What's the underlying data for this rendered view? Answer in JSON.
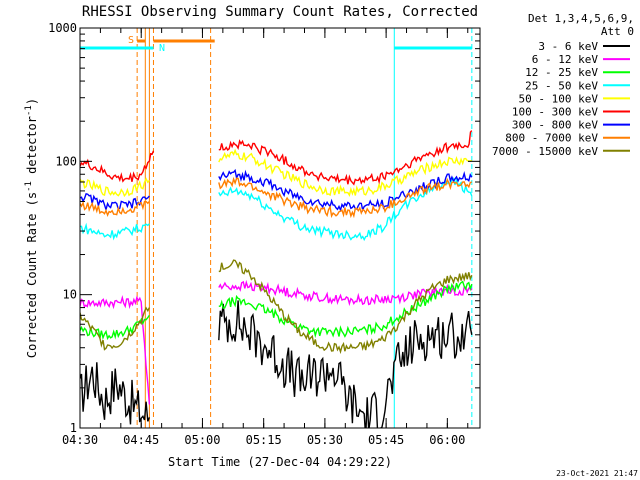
{
  "chart_data": {
    "type": "line",
    "title": "RHESSI Observing Summary Count Rates, Corrected",
    "xlabel": "Start Time (27-Dec-04 04:29:22)",
    "ylabel_main": "Corrected Count Rate (s",
    "ylabel_sup1": "-1",
    "ylabel_mid": " detector",
    "ylabel_sup2": "-1",
    "ylabel_end": ")",
    "footer": "23-Oct-2021 21:47",
    "legend_header": [
      "Det 1,3,4,5,6,9,",
      "Att 0"
    ],
    "legend_placement": "right",
    "y_scale": "log",
    "ylim": [
      1,
      1000
    ],
    "xlim": [
      "04:30",
      "06:08"
    ],
    "x_ticks": [
      "04:30",
      "04:45",
      "05:00",
      "05:15",
      "05:30",
      "05:45",
      "06:00"
    ],
    "y_ticks": [
      "1",
      "10",
      "100",
      "1000"
    ],
    "flags": {
      "saa_label": "S",
      "night_label": "N",
      "saa_color": "#ff7f00",
      "night_color": "#00ffff",
      "saa_bars": [
        [
          "04:44",
          "04:46"
        ],
        [
          "04:48",
          "05:03"
        ]
      ],
      "night_bars": [
        [
          "04:30",
          "04:48"
        ],
        [
          "05:47",
          "06:06"
        ]
      ]
    },
    "vlines": {
      "cyan_solid": [
        "04:30",
        "05:47"
      ],
      "cyan_dashed": [
        "06:06"
      ],
      "orange_solid": [
        "04:46",
        "04:47"
      ],
      "orange_dashed": [
        "04:44",
        "04:48",
        "05:02"
      ]
    },
    "series": [
      {
        "name": "3 - 6 keV",
        "color": "#000000",
        "segments": [
          {
            "x": [
              "04:30",
              "04:33",
              "04:36",
              "04:39",
              "04:42",
              "04:45",
              "04:47"
            ],
            "y": [
              1.7,
              2.6,
              1.6,
              2.2,
              1.6,
              1.3,
              1.2
            ]
          },
          {
            "x": [
              "05:04",
              "05:08",
              "05:12",
              "05:16",
              "05:20",
              "05:24",
              "05:28",
              "05:32",
              "05:36",
              "05:40",
              "05:44",
              "05:48",
              "05:52",
              "05:56",
              "06:00",
              "06:04",
              "06:06"
            ],
            "y": [
              6,
              6.5,
              5,
              4,
              3,
              2.2,
              2.5,
              2.8,
              1.6,
              1.2,
              1.4,
              3,
              4.5,
              5,
              5,
              5,
              5
            ]
          }
        ]
      },
      {
        "name": "6 - 12 keV",
        "color": "#ff00ff",
        "segments": [
          {
            "x": [
              "04:30",
              "04:35",
              "04:40",
              "04:45",
              "04:47"
            ],
            "y": [
              8.7,
              8.7,
              8.8,
              8.9,
              1.5
            ]
          },
          {
            "x": [
              "05:04",
              "05:10",
              "05:16",
              "05:20",
              "05:24",
              "05:28",
              "05:32",
              "05:36",
              "05:40",
              "05:44",
              "05:48",
              "05:52",
              "05:56",
              "06:00",
              "06:06"
            ],
            "y": [
              11.5,
              11.6,
              11.2,
              10.6,
              10.1,
              9.6,
              9.3,
              9.1,
              9.1,
              9.2,
              9.5,
              10.0,
              10.4,
              10.7,
              10.8
            ]
          }
        ]
      },
      {
        "name": "12 - 25 keV",
        "color": "#00ff00",
        "segments": [
          {
            "x": [
              "04:30",
              "04:33",
              "04:36",
              "04:39",
              "04:42",
              "04:45",
              "04:47"
            ],
            "y": [
              5.5,
              5.2,
              5.0,
              5.1,
              5.4,
              6.2,
              7.0
            ]
          },
          {
            "x": [
              "05:04",
              "05:08",
              "05:12",
              "05:16",
              "05:20",
              "05:24",
              "05:28",
              "05:32",
              "05:36",
              "05:40",
              "05:44",
              "05:48",
              "05:52",
              "05:56",
              "06:00",
              "06:06"
            ],
            "y": [
              8,
              9,
              8.5,
              7.5,
              6.5,
              5.7,
              5.3,
              5.2,
              5.3,
              5.4,
              5.8,
              6.8,
              8,
              9.5,
              11,
              12
            ]
          }
        ]
      },
      {
        "name": "25 - 50 keV",
        "color": "#00ffff",
        "segments": [
          {
            "x": [
              "04:30",
              "04:33",
              "04:36",
              "04:39",
              "04:42",
              "04:45",
              "04:47"
            ],
            "y": [
              32,
              30,
              28,
              29,
              30,
              32,
              34
            ]
          },
          {
            "x": [
              "05:04",
              "05:08",
              "05:12",
              "05:16",
              "05:20",
              "05:24",
              "05:28",
              "05:32",
              "05:36",
              "05:40",
              "05:44",
              "05:48",
              "05:52",
              "05:56",
              "06:00",
              "06:03",
              "06:06"
            ],
            "y": [
              55,
              60,
              55,
              45,
              38,
              33,
              30,
              29,
              28,
              28,
              32,
              42,
              52,
              62,
              72,
              68,
              55
            ]
          }
        ]
      },
      {
        "name": "50 - 100 keV",
        "color": "#ffff00",
        "segments": [
          {
            "x": [
              "04:30",
              "04:33",
              "04:36",
              "04:39",
              "04:42",
              "04:45",
              "04:47"
            ],
            "y": [
              70,
              65,
              60,
              58,
              60,
              66,
              72
            ]
          },
          {
            "x": [
              "05:04",
              "05:08",
              "05:12",
              "05:16",
              "05:20",
              "05:24",
              "05:28",
              "05:32",
              "05:36",
              "05:40",
              "05:44",
              "05:48",
              "05:52",
              "05:56",
              "06:00",
              "06:06"
            ],
            "y": [
              105,
              112,
              106,
              92,
              80,
              70,
              63,
              60,
              59,
              60,
              64,
              72,
              82,
              92,
              100,
              102
            ]
          }
        ]
      },
      {
        "name": "100 - 300 keV",
        "color": "#ff0000",
        "segments": [
          {
            "x": [
              "04:30",
              "04:33",
              "04:36",
              "04:39",
              "04:42",
              "04:45",
              "04:47",
              "04:48"
            ],
            "y": [
              98,
              92,
              82,
              75,
              74,
              80,
              105,
              120
            ]
          },
          {
            "x": [
              "05:04",
              "05:08",
              "05:12",
              "05:16",
              "05:20",
              "05:24",
              "05:28",
              "05:32",
              "05:36",
              "05:40",
              "05:44",
              "05:48",
              "05:52",
              "05:56",
              "06:00",
              "06:05",
              "06:06"
            ],
            "y": [
              125,
              135,
              130,
              118,
              102,
              88,
              78,
              73,
              71,
              72,
              76,
              86,
              100,
              115,
              128,
              132,
              170
            ]
          }
        ]
      },
      {
        "name": "300 - 800 keV",
        "color": "#0000ff",
        "segments": [
          {
            "x": [
              "04:30",
              "04:33",
              "04:36",
              "04:39",
              "04:42",
              "04:45",
              "04:47"
            ],
            "y": [
              55,
              52,
              47,
              46,
              47,
              50,
              55
            ]
          },
          {
            "x": [
              "05:04",
              "05:08",
              "05:12",
              "05:16",
              "05:20",
              "05:24",
              "05:28",
              "05:32",
              "05:36",
              "05:40",
              "05:44",
              "05:48",
              "05:52",
              "05:56",
              "06:00",
              "06:06"
            ],
            "y": [
              76,
              80,
              76,
              68,
              60,
              53,
              49,
              47,
              46,
              46,
              48,
              54,
              61,
              68,
              74,
              76
            ]
          }
        ]
      },
      {
        "name": "800 - 7000 keV",
        "color": "#ff7f00",
        "segments": [
          {
            "x": [
              "04:30",
              "04:33",
              "04:36",
              "04:39",
              "04:42",
              "04:45",
              "04:47"
            ],
            "y": [
              48,
              45,
              42,
              43,
              44,
              46,
              50
            ]
          },
          {
            "x": [
              "05:04",
              "05:08",
              "05:12",
              "05:16",
              "05:20",
              "05:24",
              "05:28",
              "05:32",
              "05:36",
              "05:40",
              "05:44",
              "05:48",
              "05:52",
              "05:56",
              "06:00",
              "06:06"
            ],
            "y": [
              66,
              70,
              65,
              57,
              51,
              46,
              43,
              42,
              42,
              42,
              44,
              50,
              57,
              64,
              68,
              70
            ]
          }
        ]
      },
      {
        "name": "7000 - 15000 keV",
        "color": "#808000",
        "segments": [
          {
            "x": [
              "04:30",
              "04:33",
              "04:36",
              "04:39",
              "04:42",
              "04:45",
              "04:47"
            ],
            "y": [
              7.0,
              5.5,
              4.2,
              4.2,
              5.0,
              6.5,
              8.0
            ]
          },
          {
            "x": [
              "05:04",
              "05:08",
              "05:12",
              "05:16",
              "05:20",
              "05:24",
              "05:28",
              "05:32",
              "05:36",
              "05:40",
              "05:44",
              "05:48",
              "05:52",
              "05:56",
              "06:00",
              "06:06"
            ],
            "y": [
              16,
              17,
              14,
              10,
              7,
              5.2,
              4.3,
              4.0,
              4.0,
              4.1,
              4.6,
              6,
              8.5,
              11,
              13,
              14
            ]
          }
        ]
      }
    ]
  }
}
